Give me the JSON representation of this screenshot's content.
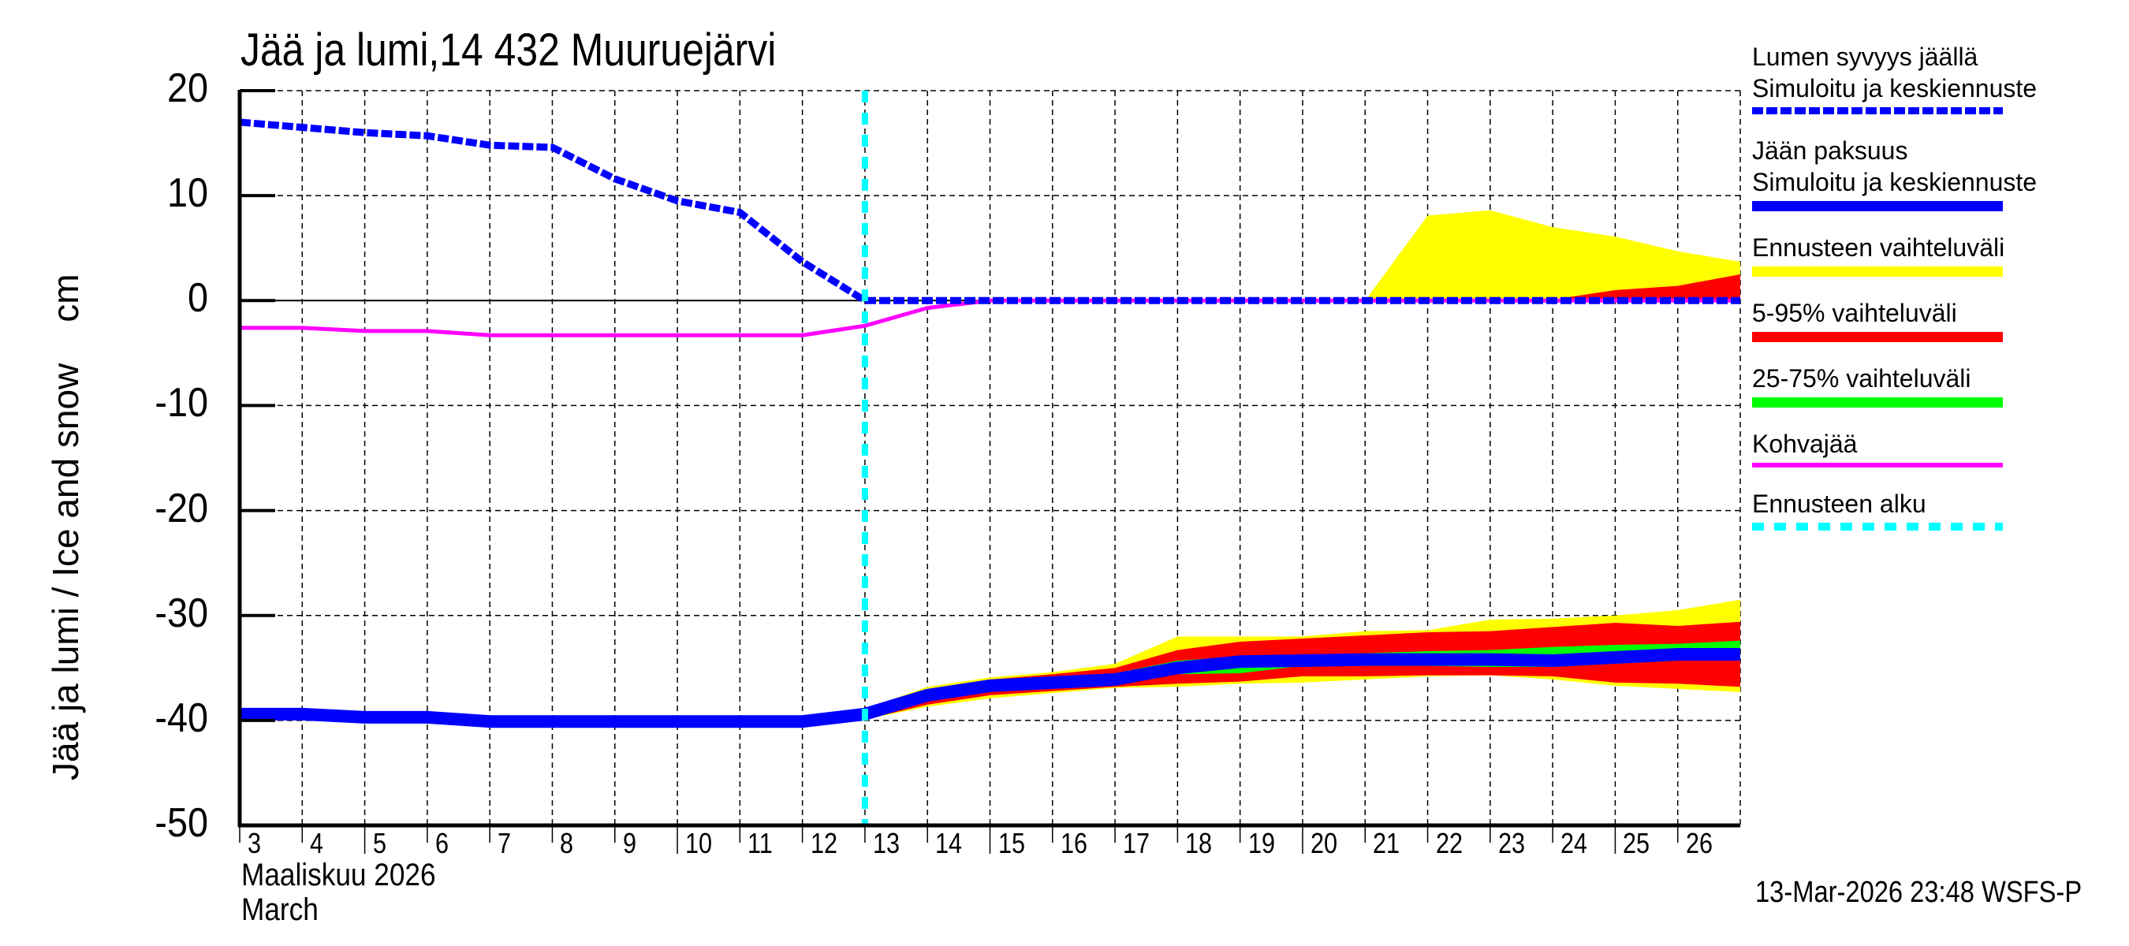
{
  "title": "Jää ja lumi,14 432 Muuruejärvi",
  "y_axis": {
    "label": "Jää ja lumi / Ice and snow",
    "unit": "cm",
    "ticks": [
      "20",
      "10",
      "0",
      "-10",
      "-20",
      "-30",
      "-40",
      "-50"
    ]
  },
  "x_axis": {
    "ticks": [
      "3",
      "4",
      "5",
      "6",
      "7",
      "8",
      "9",
      "10",
      "11",
      "12",
      "13",
      "14",
      "15",
      "16",
      "17",
      "18",
      "19",
      "20",
      "21",
      "22",
      "23",
      "24",
      "25",
      "26"
    ],
    "month_fi": "Maaliskuu 2026",
    "month_en": "March"
  },
  "legend": {
    "items": [
      {
        "line1": "Lumen syvyys jäällä",
        "line2": "Simuloitu ja keskiennuste",
        "color": "#0000ff",
        "style": "dashed-thick"
      },
      {
        "line1": "Jään paksuus",
        "line2": "Simuloitu ja keskiennuste",
        "color": "#0000ff",
        "style": "solid-thick"
      },
      {
        "line1": "Ennusteen vaihteluväli",
        "color": "#ffff00",
        "style": "solid-thick"
      },
      {
        "line1": "5-95% vaihteluväli",
        "color": "#ff0000",
        "style": "solid-thick"
      },
      {
        "line1": "25-75% vaihteluväli",
        "color": "#00ff00",
        "style": "solid-thick"
      },
      {
        "line1": "Kohvajää",
        "color": "#ff00ff",
        "style": "solid-thin"
      },
      {
        "line1": "Ennusteen alku",
        "color": "#00ffff",
        "style": "dashed-cyan"
      }
    ]
  },
  "timestamp": "13-Mar-2026 23:48 WSFS-P",
  "chart_data": {
    "type": "area",
    "title": "Jää ja lumi,14 432 Muuruejärvi",
    "xlabel": "Maaliskuu 2026 / March",
    "ylabel": "Jää ja lumi / Ice and snow cm",
    "xlim": [
      3,
      27
    ],
    "ylim": [
      -50,
      20
    ],
    "grid": true,
    "legend_position": "right",
    "forecast_start_day": 13,
    "colors": {
      "snow": "#0000ff",
      "ice": "#0000ff",
      "range_full": "#ffff00",
      "range_5_95": "#ff0000",
      "range_25_75": "#00ff00",
      "slush": "#ff00ff",
      "forecast_start": "#00ffff"
    },
    "series": [
      {
        "name": "Lumen syvyys jäällä (Simuloitu ja keskiennuste)",
        "x": [
          3,
          4,
          5,
          6,
          7,
          8,
          9,
          10,
          11,
          12,
          13,
          14,
          15,
          16,
          17,
          18,
          19,
          20,
          21,
          22,
          23,
          24,
          25,
          26,
          27
        ],
        "values": [
          17.0,
          16.5,
          16.0,
          15.7,
          14.8,
          14.6,
          11.6,
          9.5,
          8.4,
          3.7,
          0,
          0,
          0,
          0,
          0,
          0,
          0,
          0,
          0,
          0,
          0,
          0,
          0,
          0,
          0
        ]
      },
      {
        "name": "Jään paksuus (Simuloitu ja keskiennuste)",
        "x": [
          3,
          4,
          5,
          6,
          7,
          8,
          9,
          10,
          11,
          12,
          13,
          14,
          15,
          16,
          17,
          18,
          19,
          20,
          21,
          22,
          23,
          24,
          25,
          26,
          27
        ],
        "values": [
          -39.4,
          -39.4,
          -39.7,
          -39.7,
          -40.1,
          -40.1,
          -40.1,
          -40.1,
          -40.1,
          -40.1,
          -39.4,
          -37.6,
          -36.7,
          -36.4,
          -36.1,
          -35.0,
          -34.4,
          -34.3,
          -34.2,
          -34.2,
          -34.2,
          -34.3,
          -34.0,
          -33.7,
          -33.7
        ]
      },
      {
        "name": "Kohvajää",
        "x": [
          3,
          4,
          5,
          6,
          7,
          8,
          9,
          10,
          11,
          12,
          13,
          14,
          15,
          16,
          17,
          18,
          19,
          20,
          21,
          22,
          23,
          24,
          25,
          26,
          27
        ],
        "values": [
          -2.6,
          -2.6,
          -2.9,
          -2.9,
          -3.3,
          -3.3,
          -3.3,
          -3.3,
          -3.3,
          -3.3,
          -2.4,
          -0.7,
          0,
          0,
          0,
          0,
          0,
          0,
          0,
          0,
          0,
          0,
          0,
          0,
          0
        ]
      }
    ],
    "bands": {
      "x": [
        13,
        14,
        15,
        16,
        17,
        18,
        19,
        20,
        21,
        22,
        23,
        24,
        25,
        26,
        27
      ],
      "snow_range_full": {
        "lower": [
          0,
          0,
          0,
          0,
          0,
          0,
          0,
          0,
          0,
          0,
          0,
          0,
          0,
          0,
          0
        ],
        "upper": [
          0,
          0,
          0,
          0,
          0,
          0,
          0,
          0,
          0,
          8.1,
          8.6,
          7.0,
          6.1,
          4.7,
          3.7
        ]
      },
      "snow_range_5_95": {
        "lower": [
          0,
          0,
          0,
          0,
          0,
          0,
          0,
          0,
          0,
          0,
          0,
          0,
          0,
          0,
          0
        ],
        "upper": [
          0,
          0,
          0,
          0,
          0,
          0,
          0,
          0,
          0,
          0,
          0,
          0.1,
          1.0,
          1.4,
          2.5
        ]
      },
      "ice_range_full": {
        "lower": [
          -39.9,
          -38.7,
          -37.9,
          -37.4,
          -36.9,
          -36.8,
          -36.5,
          -36.4,
          -36.1,
          -35.8,
          -35.7,
          -36.1,
          -36.7,
          -37.0,
          -37.3
        ],
        "upper": [
          -38.9,
          -36.8,
          -35.9,
          -35.4,
          -34.6,
          -32.0,
          -32.0,
          -32.0,
          -31.5,
          -31.4,
          -30.4,
          -30.3,
          -30.0,
          -29.5,
          -28.5
        ]
      },
      "ice_range_5_95": {
        "lower": [
          -39.9,
          -38.5,
          -37.6,
          -37.2,
          -36.8,
          -36.5,
          -36.3,
          -35.8,
          -35.8,
          -35.7,
          -35.7,
          -35.8,
          -36.4,
          -36.5,
          -36.8
        ],
        "upper": [
          -39.0,
          -37.1,
          -36.1,
          -35.6,
          -35.0,
          -33.3,
          -32.5,
          -32.2,
          -31.9,
          -31.6,
          -31.5,
          -31.1,
          -30.7,
          -31.0,
          -30.6
        ]
      },
      "ice_range_25_75": {
        "lower": [
          -39.5,
          -37.8,
          -36.9,
          -36.6,
          -36.3,
          -35.6,
          -35.5,
          -34.8,
          -34.8,
          -34.8,
          -34.9,
          -34.9,
          -34.6,
          -34.3,
          -34.2
        ],
        "upper": [
          -39.3,
          -37.4,
          -36.5,
          -36.2,
          -35.5,
          -34.3,
          -33.9,
          -33.8,
          -33.6,
          -33.4,
          -33.3,
          -33.0,
          -32.8,
          -32.7,
          -32.4
        ]
      }
    }
  }
}
